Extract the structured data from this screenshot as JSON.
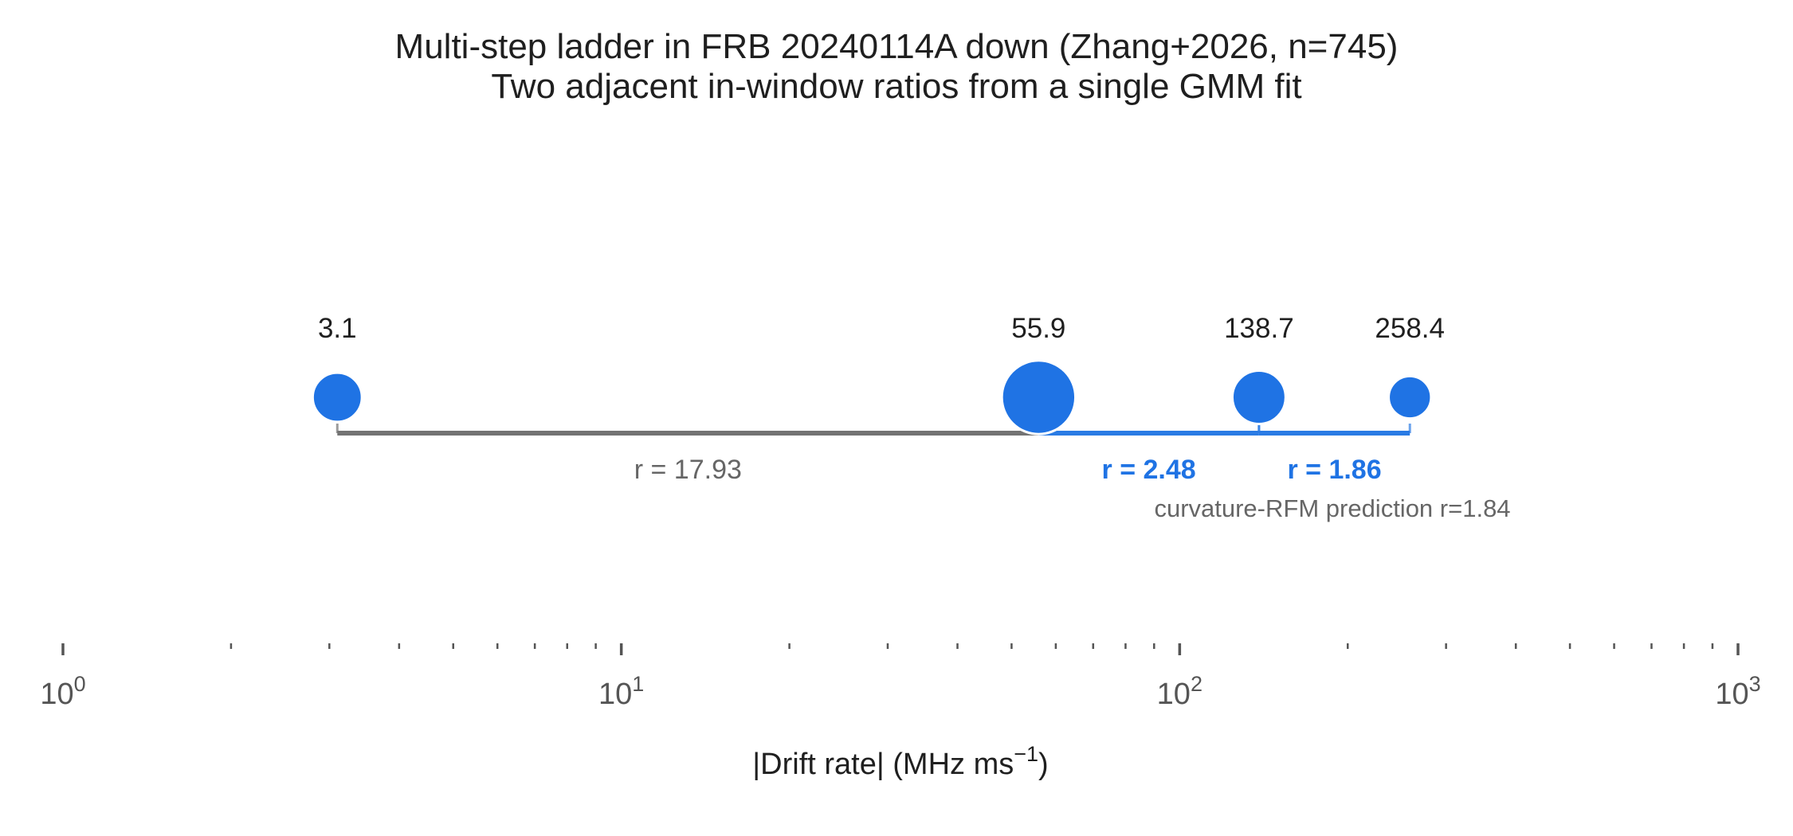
{
  "chart_data": {
    "type": "scatter",
    "title": "Multi-step ladder in FRB 20240114A down (Zhang+2026, n=745)",
    "subtitle": "Two adjacent in-window ratios from a single GMM fit",
    "xlabel": "|Drift rate| (MHz ms",
    "xlabel_sup": "−1",
    "xlabel_tail": ")",
    "xscale": "log",
    "xlim": [
      1,
      1000
    ],
    "x_ticks": [
      {
        "value": 1,
        "base": "10",
        "exp": "0"
      },
      {
        "value": 10,
        "base": "10",
        "exp": "1"
      },
      {
        "value": 100,
        "base": "10",
        "exp": "2"
      },
      {
        "value": 1000,
        "base": "10",
        "exp": "3"
      }
    ],
    "points": [
      {
        "x": 3.1,
        "label": "3.1",
        "weight": 0.7
      },
      {
        "x": 55.9,
        "label": "55.9",
        "weight": 1.6
      },
      {
        "x": 138.7,
        "label": "138.7",
        "weight": 0.85
      },
      {
        "x": 258.4,
        "label": "258.4",
        "weight": 0.45
      }
    ],
    "ratios": [
      {
        "from": 3.1,
        "to": 55.9,
        "label": "r = 17.93",
        "highlight": false
      },
      {
        "from": 55.9,
        "to": 138.7,
        "label": "r = 2.48",
        "highlight": true
      },
      {
        "from": 138.7,
        "to": 258.4,
        "label": "r = 1.86",
        "highlight": true
      }
    ],
    "annotation": "curvature-RFM prediction r=1.84",
    "colors": {
      "point": "#1f73e4",
      "highlight": "#2a7be4",
      "plain_bracket": "#737373",
      "plain_text": "#666666",
      "axis": "#555555",
      "text": "#1f1f1f"
    }
  }
}
